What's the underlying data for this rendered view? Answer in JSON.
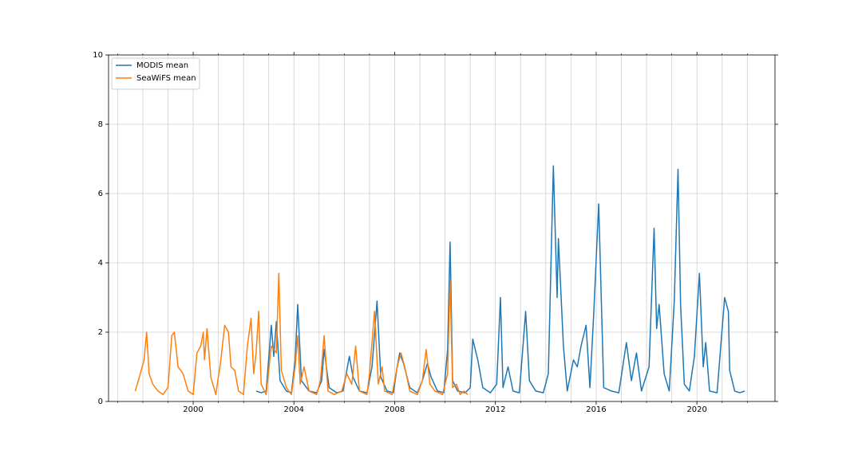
{
  "chart_data": {
    "type": "line",
    "x_scale": "numeric",
    "xlim": [
      1996.64,
      2023.1
    ],
    "ylim": [
      0,
      10
    ],
    "xticks": [
      2000,
      2004,
      2008,
      2012,
      2016,
      2020
    ],
    "xminorticks": [
      1997,
      1998,
      1999,
      2001,
      2002,
      2003,
      2005,
      2006,
      2007,
      2009,
      2010,
      2011,
      2013,
      2014,
      2015,
      2017,
      2018,
      2019,
      2021,
      2022
    ],
    "yticks": [
      0,
      2,
      4,
      6,
      8,
      10
    ],
    "grid": true,
    "legend": "upper left",
    "series": [
      {
        "name": "MODIS mean",
        "color": "#1f77b4",
        "x": [
          2002.5,
          2002.7,
          2002.9,
          2003.1,
          2003.2,
          2003.3,
          2003.45,
          2003.7,
          2003.9,
          2004.05,
          2004.15,
          2004.3,
          2004.6,
          2004.9,
          2005.1,
          2005.2,
          2005.4,
          2005.7,
          2005.95,
          2006.2,
          2006.35,
          2006.6,
          2006.9,
          2007.1,
          2007.3,
          2007.45,
          2007.7,
          2007.95,
          2008.1,
          2008.2,
          2008.35,
          2008.6,
          2008.9,
          2009.1,
          2009.3,
          2009.45,
          2009.7,
          2009.95,
          2010.1,
          2010.2,
          2010.3,
          2010.5,
          2010.8,
          2011.0,
          2011.1,
          2011.3,
          2011.5,
          2011.8,
          2012.05,
          2012.2,
          2012.3,
          2012.5,
          2012.7,
          2012.95,
          2013.2,
          2013.35,
          2013.6,
          2013.9,
          2014.1,
          2014.3,
          2014.45,
          2014.5,
          2014.7,
          2014.85,
          2015.1,
          2015.25,
          2015.4,
          2015.6,
          2015.75,
          2015.9,
          2016.1,
          2016.3,
          2016.6,
          2016.9,
          2017.2,
          2017.4,
          2017.6,
          2017.8,
          2018.1,
          2018.3,
          2018.4,
          2018.5,
          2018.7,
          2018.9,
          2019.1,
          2019.25,
          2019.35,
          2019.5,
          2019.7,
          2019.9,
          2020.1,
          2020.25,
          2020.35,
          2020.5,
          2020.8,
          2021.1,
          2021.25,
          2021.3,
          2021.5,
          2021.7,
          2021.9
        ],
        "values": [
          0.3,
          0.25,
          0.3,
          2.2,
          1.3,
          2.3,
          0.6,
          0.3,
          0.25,
          1.2,
          2.8,
          0.6,
          0.3,
          0.25,
          0.6,
          1.5,
          0.4,
          0.25,
          0.3,
          1.3,
          0.7,
          0.3,
          0.25,
          1.0,
          2.9,
          0.7,
          0.3,
          0.25,
          1.0,
          1.4,
          1.1,
          0.4,
          0.25,
          0.6,
          1.1,
          0.7,
          0.3,
          0.25,
          1.5,
          4.6,
          0.6,
          0.3,
          0.25,
          0.4,
          1.8,
          1.2,
          0.4,
          0.25,
          0.5,
          3.0,
          0.4,
          1.0,
          0.3,
          0.25,
          2.6,
          0.6,
          0.3,
          0.25,
          0.8,
          6.8,
          3.0,
          4.7,
          1.6,
          0.3,
          1.2,
          1.0,
          1.6,
          2.2,
          0.4,
          2.5,
          5.7,
          0.4,
          0.3,
          0.25,
          1.7,
          0.6,
          1.4,
          0.3,
          1.0,
          5.0,
          2.1,
          2.8,
          0.8,
          0.3,
          2.9,
          6.7,
          2.8,
          0.5,
          0.3,
          1.3,
          3.7,
          1.0,
          1.7,
          0.3,
          0.25,
          3.0,
          2.6,
          0.9,
          0.3,
          0.25,
          0.3
        ]
      },
      {
        "name": "SeaWiFS mean",
        "color": "#ff7f0e",
        "x": [
          1997.7,
          1997.9,
          1998.05,
          1998.15,
          1998.25,
          1998.4,
          1998.6,
          1998.8,
          1999.0,
          1999.15,
          1999.25,
          1999.4,
          1999.6,
          1999.8,
          2000.0,
          2000.15,
          2000.3,
          2000.4,
          2000.45,
          2000.55,
          2000.7,
          2000.9,
          2001.1,
          2001.25,
          2001.4,
          2001.5,
          2001.65,
          2001.8,
          2002.0,
          2002.15,
          2002.3,
          2002.4,
          2002.5,
          2002.6,
          2002.7,
          2002.9,
          2003.1,
          2003.3,
          2003.4,
          2003.5,
          2003.7,
          2003.9,
          2004.05,
          2004.15,
          2004.25,
          2004.4,
          2004.6,
          2004.9,
          2005.05,
          2005.2,
          2005.35,
          2005.6,
          2005.9,
          2006.1,
          2006.3,
          2006.45,
          2006.6,
          2006.9,
          2007.0,
          2007.2,
          2007.35,
          2007.5,
          2007.6,
          2007.9,
          2008.1,
          2008.25,
          2008.4,
          2008.6,
          2008.9,
          2009.1,
          2009.25,
          2009.4,
          2009.6,
          2009.9,
          2010.1,
          2010.2,
          2010.3,
          2010.45,
          2010.6,
          2010.75,
          2010.9
        ],
        "values": [
          0.3,
          0.8,
          1.2,
          2.0,
          0.8,
          0.5,
          0.3,
          0.2,
          0.4,
          1.9,
          2.0,
          1.0,
          0.8,
          0.3,
          0.2,
          1.4,
          1.6,
          2.0,
          1.2,
          2.1,
          0.7,
          0.2,
          1.2,
          2.2,
          2.0,
          1.0,
          0.9,
          0.3,
          0.2,
          1.6,
          2.4,
          0.8,
          1.4,
          2.6,
          0.5,
          0.2,
          1.6,
          1.4,
          3.7,
          0.9,
          0.4,
          0.2,
          1.0,
          1.9,
          0.5,
          1.0,
          0.3,
          0.2,
          0.6,
          1.9,
          0.3,
          0.2,
          0.3,
          0.8,
          0.5,
          1.6,
          0.3,
          0.2,
          0.8,
          2.6,
          0.5,
          1.0,
          0.3,
          0.2,
          1.0,
          1.4,
          1.0,
          0.3,
          0.2,
          0.6,
          1.5,
          0.5,
          0.3,
          0.2,
          0.8,
          3.5,
          0.4,
          0.5,
          0.2,
          0.3,
          0.2
        ]
      }
    ]
  }
}
